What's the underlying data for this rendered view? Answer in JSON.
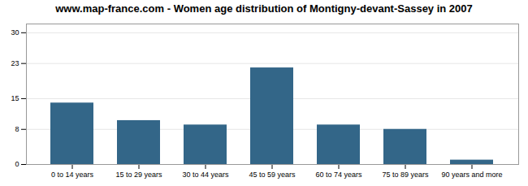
{
  "chart_data": {
    "type": "bar",
    "title": "www.map-france.com - Women age distribution of Montigny-devant-Sassey in 2007",
    "categories": [
      "0 to 14 years",
      "15 to 29 years",
      "30 to 44 years",
      "45 to 59 years",
      "60 to 74 years",
      "75 to 89 years",
      "90 years and more"
    ],
    "values": [
      14,
      10,
      9,
      22,
      9,
      8,
      1
    ],
    "color": "#336688",
    "ylim": [
      0,
      32
    ],
    "yticks": [
      0,
      8,
      15,
      23,
      30
    ],
    "grid": true
  }
}
